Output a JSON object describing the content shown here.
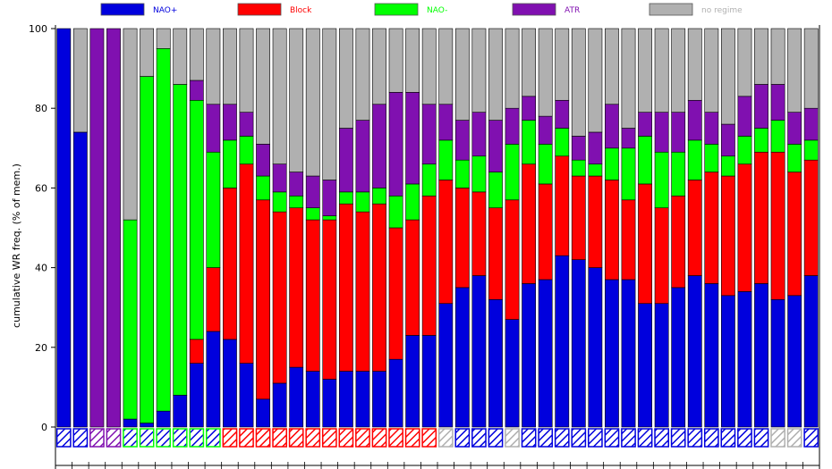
{
  "chart_data": {
    "type": "bar",
    "stacked": true,
    "title": "",
    "xlabel": "",
    "ylabel": "cumulative WR freq. (% of mem.)",
    "ylim": [
      0,
      100
    ],
    "yticks": [
      0,
      20,
      40,
      60,
      80,
      100
    ],
    "grid": false,
    "legend_position": "top",
    "series": [
      {
        "name": "NAO+",
        "color": "#0000dd",
        "values": [
          100,
          74,
          0,
          0,
          2,
          1,
          4,
          8,
          16,
          24,
          22,
          16,
          7,
          11,
          15,
          14,
          12,
          14,
          14,
          14,
          17,
          23,
          23,
          31,
          35,
          38,
          32,
          27,
          36,
          37,
          43,
          42,
          40,
          37,
          37,
          31,
          31,
          35,
          38,
          36,
          33,
          34,
          36,
          32,
          33,
          38
        ]
      },
      {
        "name": "Block",
        "color": "#ff0000",
        "values": [
          0,
          0,
          0,
          0,
          0,
          0,
          0,
          0,
          6,
          16,
          38,
          50,
          50,
          43,
          40,
          38,
          40,
          42,
          40,
          42,
          33,
          29,
          35,
          31,
          25,
          21,
          23,
          30,
          30,
          24,
          25,
          21,
          23,
          25,
          20,
          30,
          24,
          23,
          24,
          28,
          30,
          32,
          33,
          37,
          31,
          29
        ]
      },
      {
        "name": "NAO-",
        "color": "#00ff00",
        "values": [
          0,
          0,
          0,
          0,
          50,
          87,
          91,
          78,
          60,
          29,
          12,
          7,
          6,
          5,
          3,
          3,
          1,
          3,
          5,
          4,
          8,
          9,
          8,
          10,
          7,
          9,
          9,
          14,
          11,
          10,
          7,
          4,
          3,
          8,
          13,
          12,
          14,
          11,
          10,
          7,
          5,
          7,
          6,
          8,
          7,
          5
        ]
      },
      {
        "name": "ATR",
        "color": "#8010b0",
        "values": [
          0,
          0,
          100,
          100,
          0,
          0,
          0,
          0,
          5,
          12,
          9,
          6,
          8,
          7,
          6,
          8,
          9,
          16,
          18,
          21,
          26,
          23,
          15,
          9,
          10,
          11,
          13,
          9,
          6,
          7,
          7,
          6,
          8,
          11,
          5,
          6,
          10,
          10,
          10,
          8,
          8,
          10,
          11,
          9,
          8,
          8
        ]
      },
      {
        "name": "no regime",
        "color": "#b0b0b0",
        "values": [
          0,
          26,
          0,
          0,
          48,
          12,
          5,
          14,
          13,
          19,
          19,
          21,
          29,
          34,
          36,
          37,
          38,
          25,
          23,
          19,
          16,
          16,
          19,
          19,
          23,
          21,
          23,
          20,
          17,
          22,
          18,
          27,
          26,
          19,
          25,
          21,
          21,
          21,
          18,
          21,
          24,
          17,
          14,
          14,
          21,
          20
        ]
      }
    ],
    "regime_indicator": {
      "codes": [
        "NAO+",
        "NAO+",
        "ATR",
        "ATR",
        "NAO-",
        "NAO-",
        "NAO-",
        "NAO-",
        "NAO-",
        "NAO-",
        "Block",
        "Block",
        "Block",
        "Block",
        "Block",
        "Block",
        "Block",
        "Block",
        "Block",
        "Block",
        "Block",
        "Block",
        "Block",
        "no regime",
        "NAO+",
        "NAO+",
        "NAO+",
        "no regime",
        "NAO+",
        "NAO+",
        "NAO+",
        "NAO+",
        "NAO+",
        "NAO+",
        "NAO+",
        "NAO+",
        "NAO+",
        "NAO+",
        "NAO+",
        "NAO+",
        "NAO+",
        "NAO+",
        "NAO+",
        "no regime",
        "no regime",
        "NAO+"
      ]
    }
  }
}
